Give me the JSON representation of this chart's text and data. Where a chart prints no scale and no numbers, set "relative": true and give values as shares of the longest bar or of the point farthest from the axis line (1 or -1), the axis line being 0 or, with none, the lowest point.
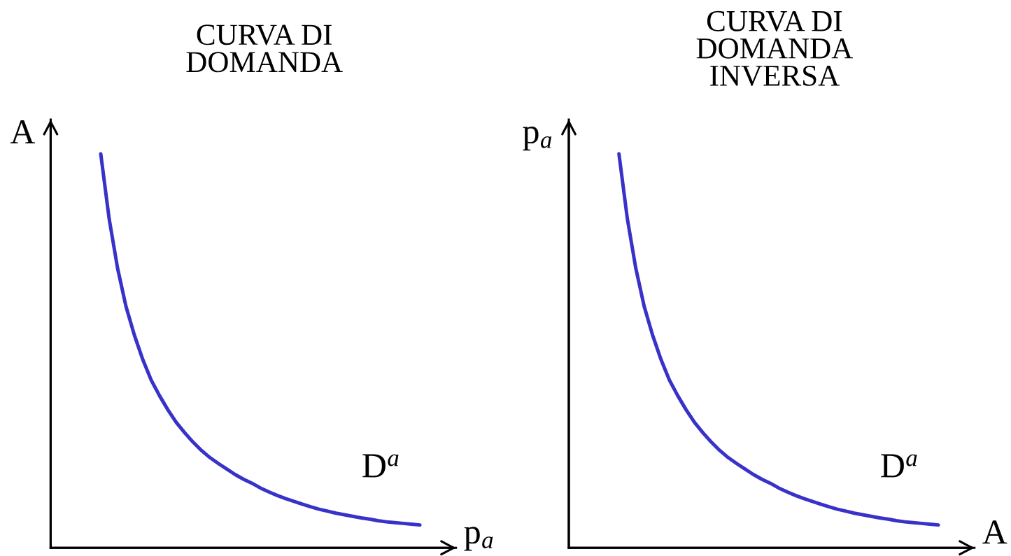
{
  "chart_data": [
    {
      "type": "line",
      "title": "CURVA DI\nDOMANDA",
      "xlabel": "p$_{a}$",
      "ylabel": "A",
      "relative": true,
      "line_style": "solid",
      "categories": [
        null,
        null,
        null,
        null,
        null,
        null,
        null,
        null,
        null,
        null,
        null,
        null,
        null,
        null,
        null,
        null,
        null,
        null,
        null,
        null,
        null,
        null,
        null,
        null,
        null,
        null,
        null,
        null,
        null,
        null,
        null,
        null,
        null,
        null,
        null,
        null,
        null,
        null,
        null
      ],
      "series": [
        {
          "name": "D$^{a}$",
          "color": "#3832c8",
          "values": [
            1,
            0.835,
            0.71,
            0.613,
            0.54,
            0.478,
            0.426,
            0.386,
            0.35,
            0.318,
            0.292,
            0.268,
            0.247,
            0.229,
            0.214,
            0.2,
            0.186,
            0.174,
            0.164,
            0.152,
            0.142,
            0.133,
            0.125,
            0.118,
            0.111,
            0.104,
            0.098,
            0.093,
            0.088,
            0.084,
            0.08,
            0.076,
            0.073,
            0.069,
            0.066,
            0.064,
            0.062,
            0.06,
            0.058
          ]
        }
      ]
    },
    {
      "type": "line",
      "title": "CURVA DI\nDOMANDA\nINVERSA",
      "xlabel": "A",
      "ylabel": "p$_{a}$",
      "relative": true,
      "line_style": "solid",
      "categories": [
        null,
        null,
        null,
        null,
        null,
        null,
        null,
        null,
        null,
        null,
        null,
        null,
        null,
        null,
        null,
        null,
        null,
        null,
        null,
        null,
        null,
        null,
        null,
        null,
        null,
        null,
        null,
        null,
        null,
        null,
        null,
        null,
        null,
        null,
        null,
        null,
        null,
        null,
        null
      ],
      "series": [
        {
          "name": "D$^{a}$",
          "color": "#3832c8",
          "values": [
            1,
            0.835,
            0.71,
            0.613,
            0.54,
            0.478,
            0.426,
            0.386,
            0.35,
            0.318,
            0.292,
            0.268,
            0.247,
            0.229,
            0.214,
            0.2,
            0.186,
            0.174,
            0.164,
            0.152,
            0.142,
            0.133,
            0.125,
            0.118,
            0.111,
            0.104,
            0.098,
            0.093,
            0.088,
            0.084,
            0.08,
            0.076,
            0.073,
            0.069,
            0.066,
            0.064,
            0.062,
            0.06,
            0.058
          ]
        }
      ]
    }
  ]
}
